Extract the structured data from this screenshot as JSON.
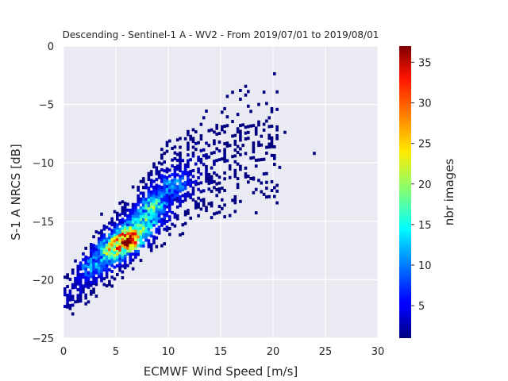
{
  "chart_data": {
    "type": "heatmap",
    "title": "Descending - Sentinel-1 A - WV2 - From 2019/07/01 to 2019/08/01",
    "xlabel": "ECMWF Wind Speed [m/s]",
    "ylabel": "S-1 A NRCS [dB]",
    "xlim": [
      0,
      30
    ],
    "ylim": [
      -25,
      0
    ],
    "xticks": [
      "0",
      "5",
      "10",
      "15",
      "20",
      "25",
      "30"
    ],
    "yticks": [
      "0",
      "−5",
      "−10",
      "−15",
      "−20",
      "−25"
    ],
    "grid": true,
    "bin_size": {
      "x": 0.25,
      "y": 0.25
    },
    "colormap": "jet",
    "colorbar": {
      "label": "nbr images",
      "range": [
        1,
        37
      ],
      "ticks": [
        "5",
        "10",
        "15",
        "20",
        "25",
        "30",
        "35"
      ]
    },
    "density_model": {
      "ridge": [
        [
          0.5,
          -21.5
        ],
        [
          2,
          -19.5
        ],
        [
          4,
          -17.8
        ],
        [
          6,
          -16.5
        ],
        [
          8,
          -14.2
        ],
        [
          10,
          -12.5
        ],
        [
          12,
          -11.2
        ],
        [
          15,
          -9.8
        ],
        [
          18,
          -8.6
        ],
        [
          20,
          -8.0
        ]
      ],
      "hotspots": [
        {
          "x": 6.0,
          "y": -16.7,
          "peak": 37
        },
        {
          "x": 4.5,
          "y": -17.6,
          "peak": 20
        },
        {
          "x": 7.5,
          "y": -15.5,
          "peak": 16
        },
        {
          "x": 8.5,
          "y": -13.8,
          "peak": 14
        },
        {
          "x": 10.5,
          "y": -12.0,
          "peak": 10
        },
        {
          "x": 2.5,
          "y": -19.0,
          "peak": 8
        }
      ],
      "outliers": [
        [
          23.8,
          -9.3
        ],
        [
          21.0,
          -7.5
        ],
        [
          20.5,
          -10.5
        ],
        [
          18.0,
          -11.5
        ],
        [
          3.5,
          -14.5
        ],
        [
          13.0,
          -7.8
        ],
        [
          16.5,
          -7.2
        ]
      ]
    }
  }
}
